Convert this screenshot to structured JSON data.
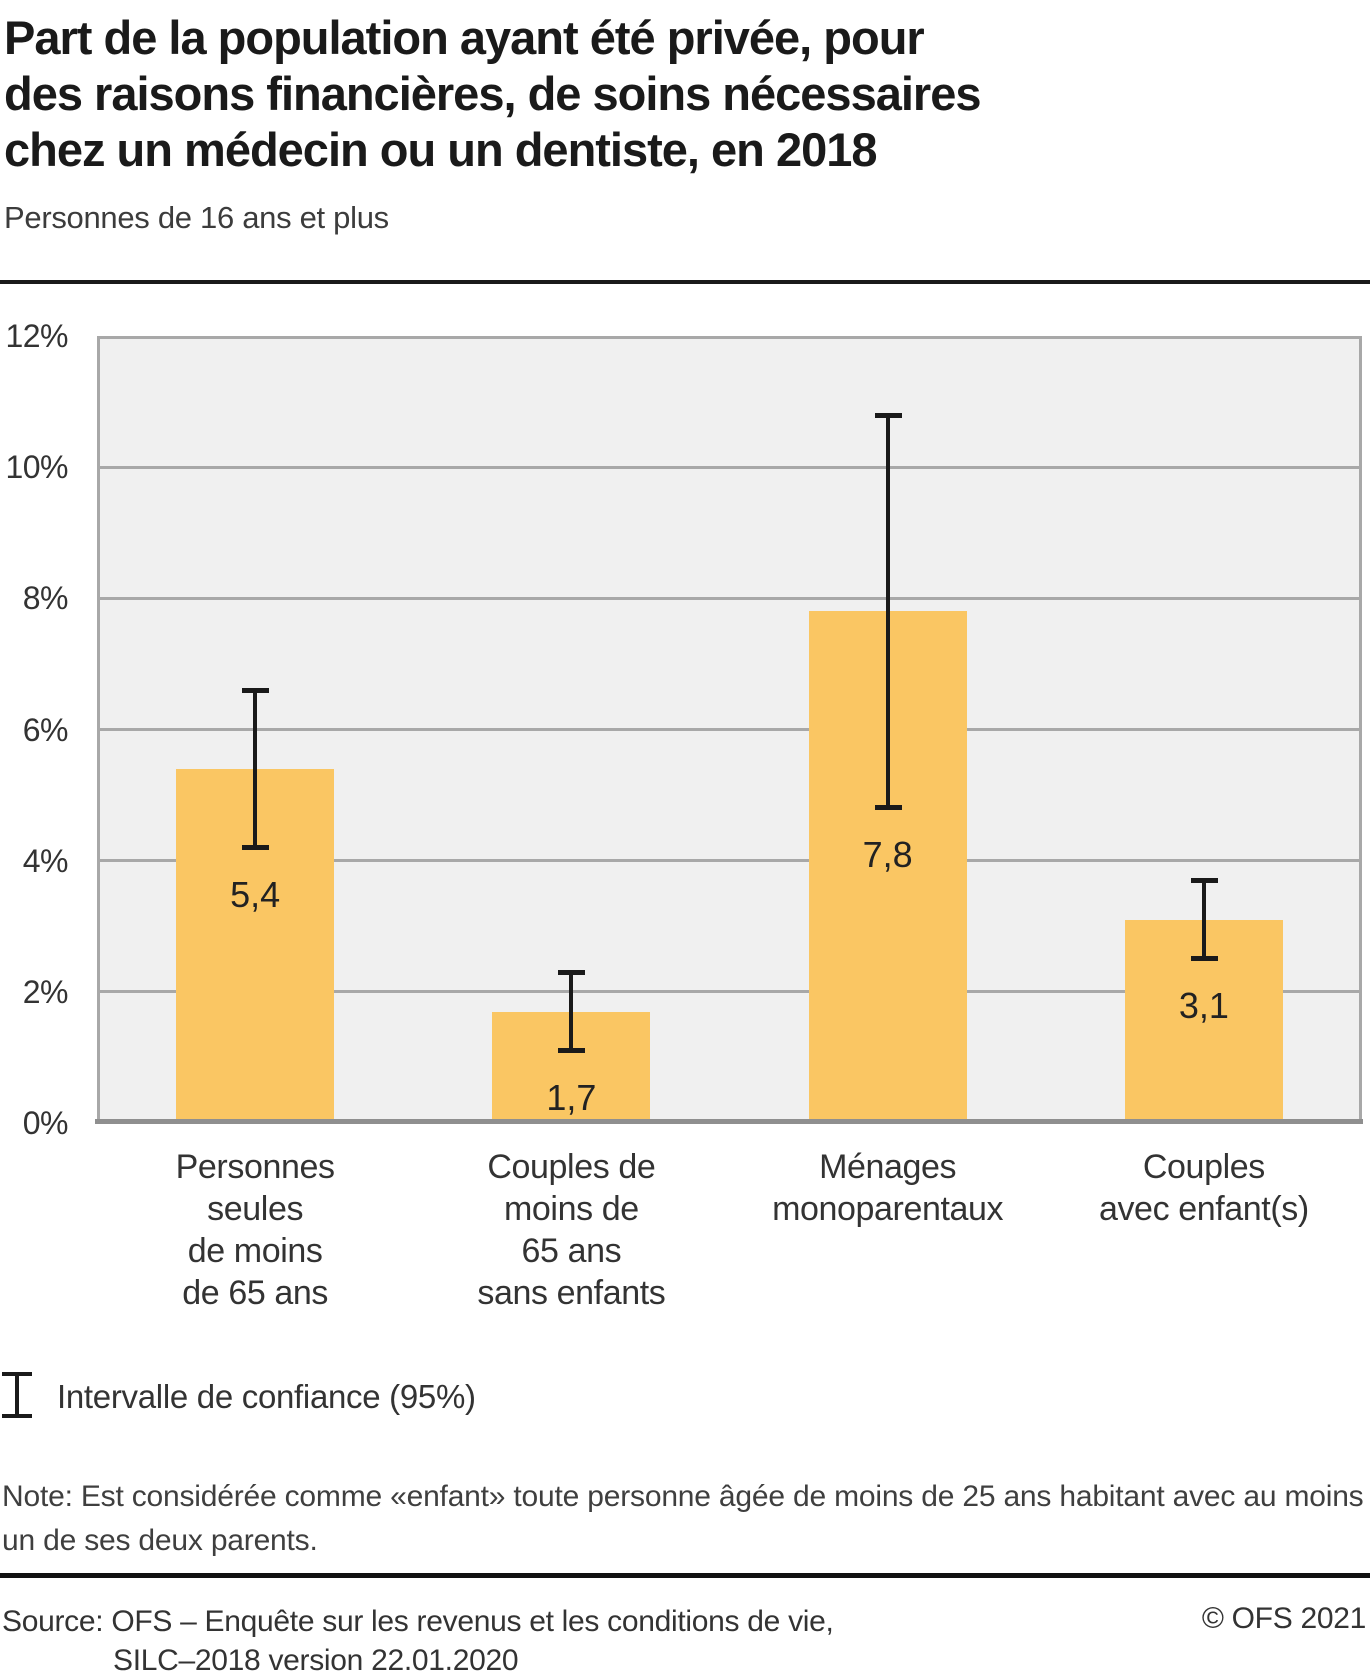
{
  "title_lines": [
    "Part de la population ayant été privée, pour",
    "des raisons financières, de soins nécessaires",
    "chez un médecin ou un dentiste, en 2018"
  ],
  "subtitle": "Personnes de 16 ans et plus",
  "chart_data": {
    "type": "bar",
    "title": "Part de la population ayant été privée, pour des raisons financières, de soins nécessaires chez un médecin ou un dentiste, en 2018",
    "subtitle": "Personnes de 16 ans et plus",
    "categories": [
      "Personnes seules de moins de 65 ans",
      "Couples de moins de 65 ans sans enfants",
      "Ménages monoparentaux",
      "Couples avec enfant(s)"
    ],
    "category_lines": [
      [
        "Personnes",
        "seules",
        "de moins",
        "de 65 ans"
      ],
      [
        "Couples de",
        "moins de",
        "65 ans",
        "sans enfants"
      ],
      [
        "Ménages",
        "monoparentaux"
      ],
      [
        "Couples",
        "avec enfant(s)"
      ]
    ],
    "values": [
      5.4,
      1.7,
      7.8,
      3.1
    ],
    "value_labels": [
      "5,4",
      "1,7",
      "7,8",
      "3,1"
    ],
    "ci_low": [
      4.2,
      1.1,
      4.8,
      2.5
    ],
    "ci_high": [
      6.6,
      2.3,
      10.8,
      3.7
    ],
    "ylim": [
      0,
      12
    ],
    "ytick_step": 2,
    "ytick_suffix": "%",
    "grid": true,
    "legend_position": "bottom-left",
    "legend_label": "Intervalle de confiance (95%)",
    "bar_color": "#FAC663",
    "plot_bg_color": "#f0f0f0",
    "grid_color": "#a8a8a8",
    "error_bar_color": "#1a1a1a"
  },
  "note": "Note: Est considérée comme «enfant» toute personne âgée de moins de 25 ans habitant avec au moins un de ses deux parents.",
  "source": {
    "line1": "Source: OFS – Enquête sur les revenus et les conditions de vie,",
    "line2": "SILC–2018 version 22.01.2020",
    "copyright": "© OFS 2021"
  }
}
